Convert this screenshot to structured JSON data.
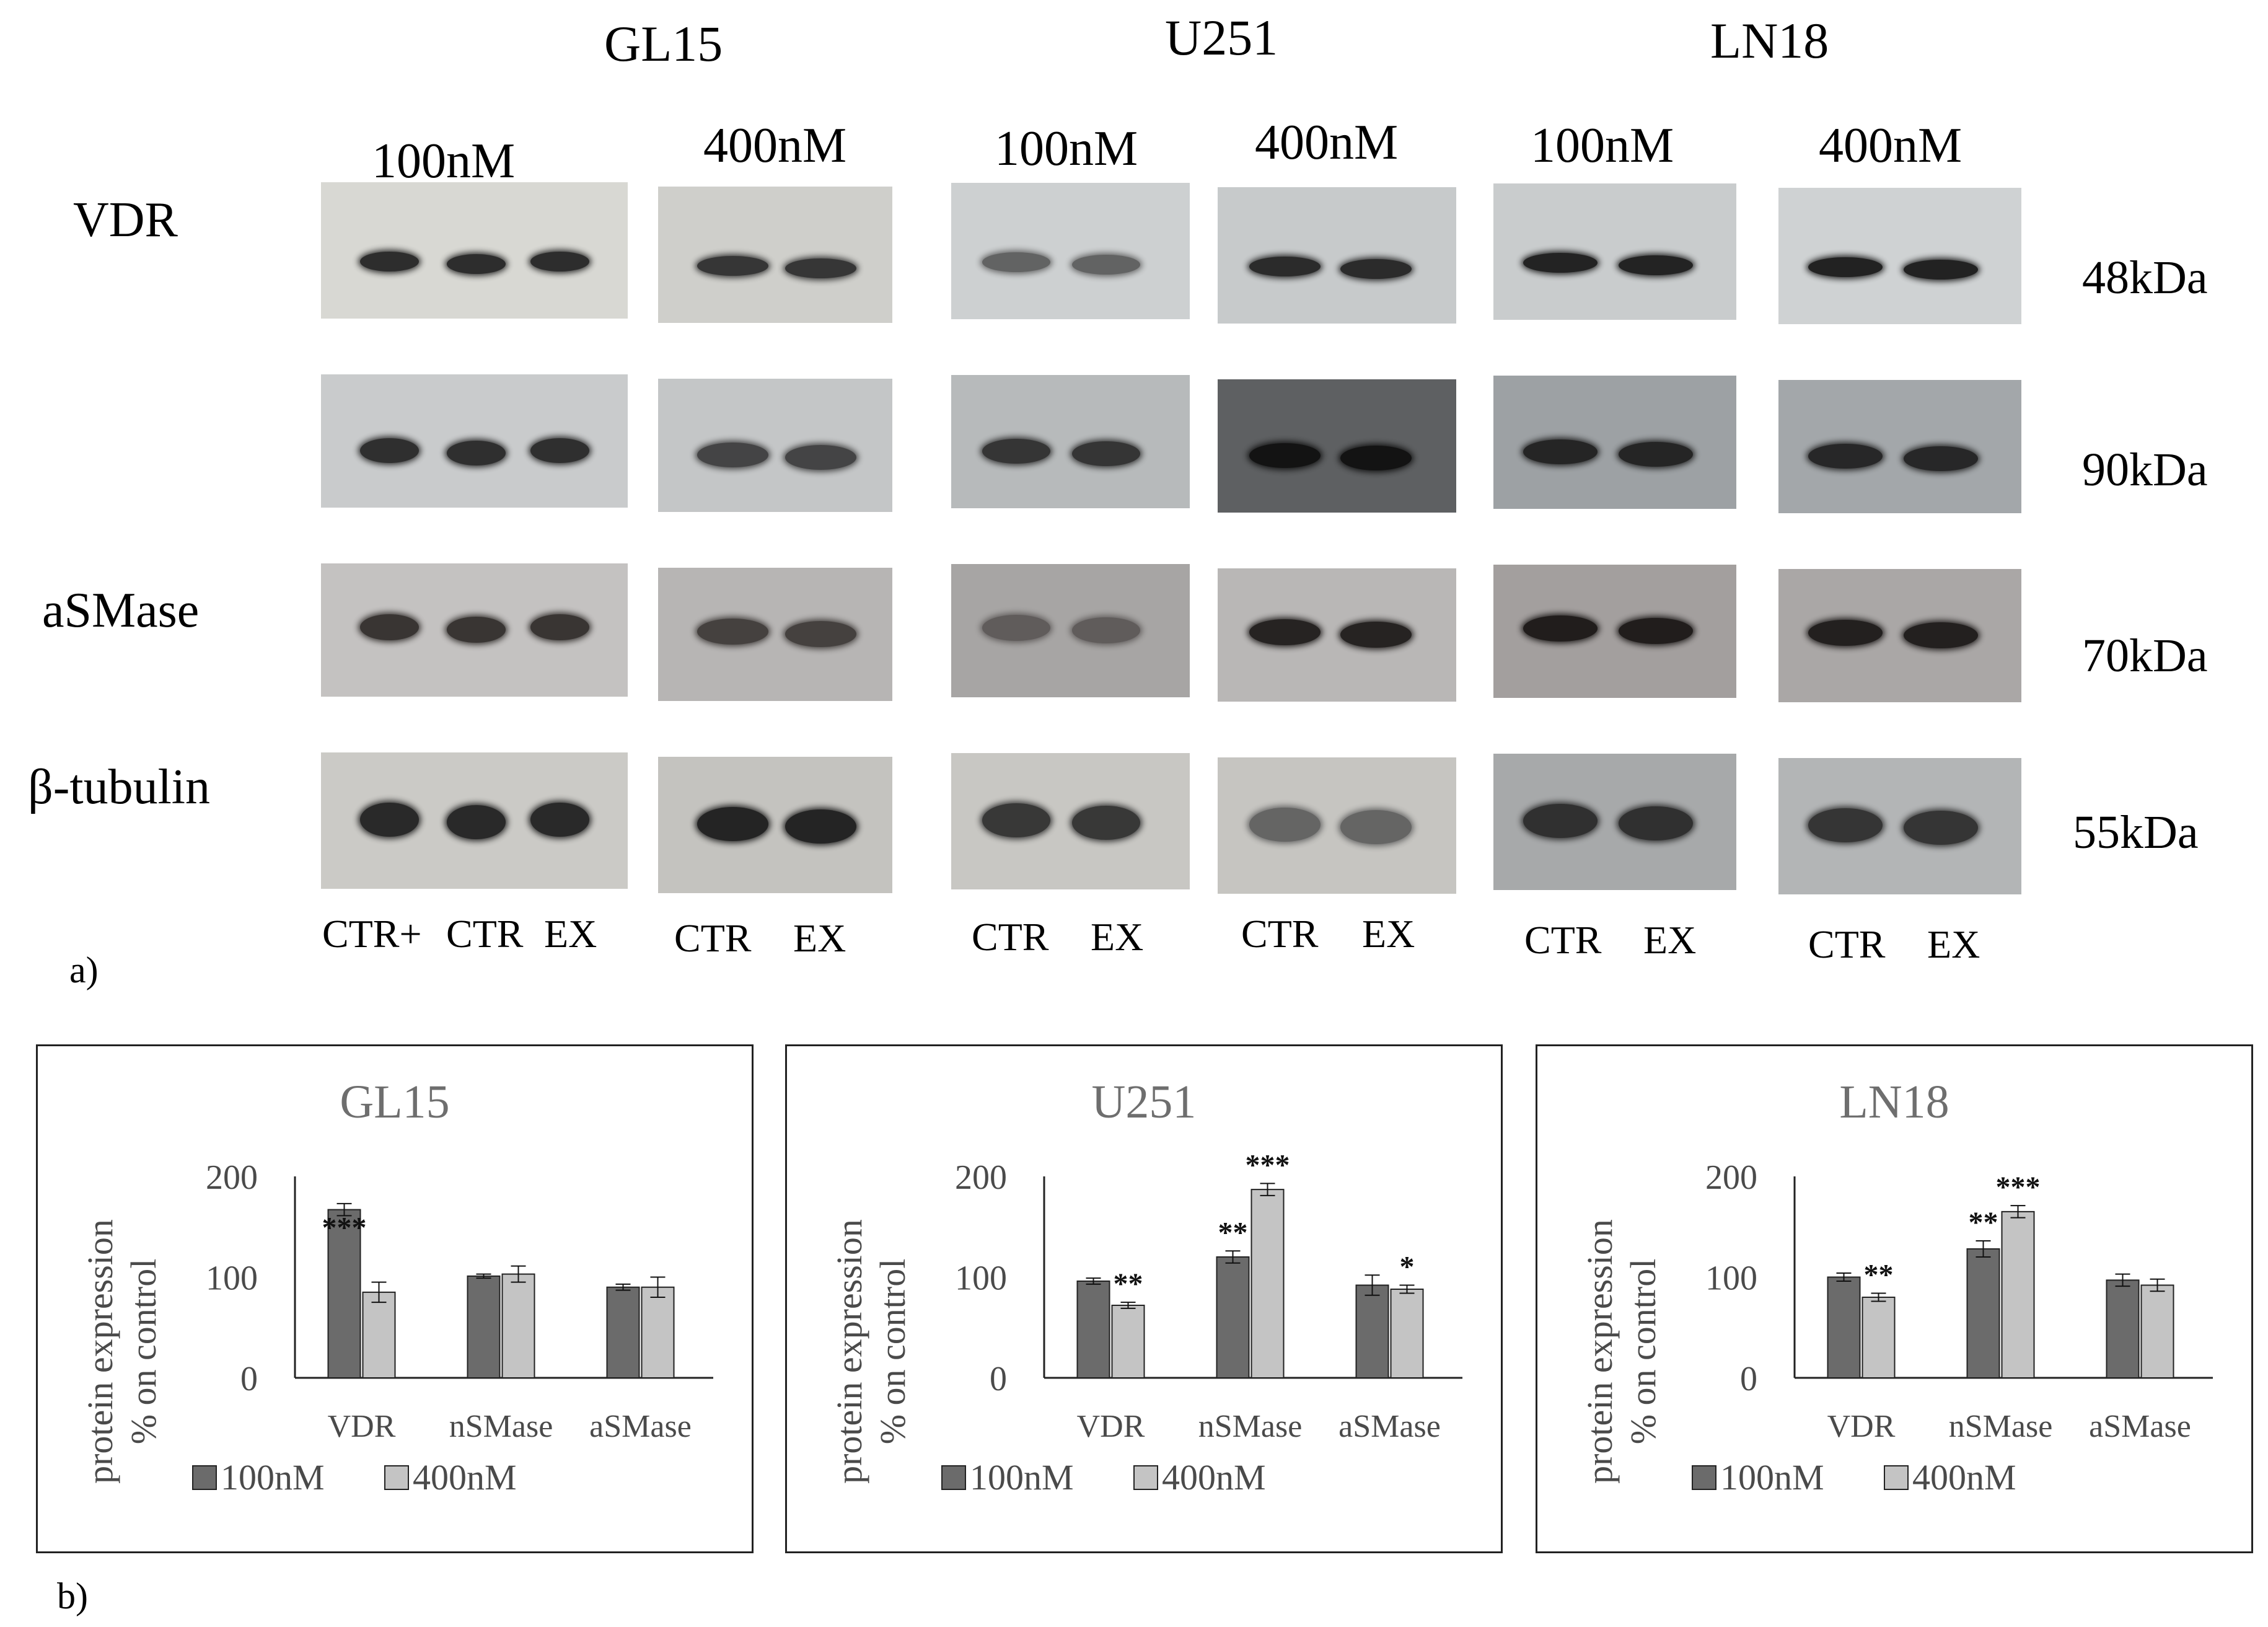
{
  "panel_a": {
    "label": "a)",
    "cell_lines": [
      {
        "name": "GL15",
        "concentrations": [
          "100nM",
          "400nM"
        ]
      },
      {
        "name": "U251",
        "concentrations": [
          "100nM",
          "400nM"
        ]
      },
      {
        "name": "LN18",
        "concentrations": [
          "100nM",
          "400nM"
        ]
      }
    ],
    "protein_labels": [
      "VDR",
      "aSMase",
      "β-tubulin"
    ],
    "kda_labels": [
      "48kDa",
      "90kDa",
      "70kDa",
      "55kDa"
    ],
    "lane_labels": [
      [
        "CTR+",
        "CTR",
        "EX"
      ],
      [
        "CTR",
        "EX"
      ],
      [
        "CTR",
        "EX"
      ],
      [
        "CTR",
        "EX"
      ],
      [
        "CTR",
        "EX"
      ],
      [
        "CTR",
        "EX"
      ]
    ]
  },
  "panel_b": {
    "label": "b)",
    "colors": {
      "100nM": "#6b6b6b",
      "400nM": "#c4c4c4",
      "title": "#6e6e6e",
      "axis_text": "#4a4a4a"
    }
  },
  "chart_data": [
    {
      "type": "bar",
      "title": "GL15",
      "ylabel": "protein expression % on control",
      "xlabel": "",
      "categories": [
        "VDR",
        "nSMase",
        "aSMase"
      ],
      "ylim": [
        0,
        200
      ],
      "yticks": [
        "0",
        "100",
        "200"
      ],
      "series": [
        {
          "name": "100nM",
          "values": [
            167,
            101,
            90
          ],
          "errors": [
            6,
            2,
            3
          ],
          "sig": [
            "***",
            "",
            ""
          ]
        },
        {
          "name": "400nM",
          "values": [
            85,
            103,
            90
          ],
          "errors": [
            10,
            8,
            10
          ],
          "sig": [
            "",
            "",
            ""
          ]
        }
      ],
      "legend": "bottom"
    },
    {
      "type": "bar",
      "title": "U251",
      "ylabel": "protein expression % on control",
      "xlabel": "",
      "categories": [
        "VDR",
        "nSMase",
        "aSMase"
      ],
      "ylim": [
        0,
        200
      ],
      "yticks": [
        "0",
        "100",
        "200"
      ],
      "series": [
        {
          "name": "100nM",
          "values": [
            96,
            120,
            92
          ],
          "errors": [
            3,
            6,
            10
          ],
          "sig": [
            "",
            "**",
            ""
          ]
        },
        {
          "name": "400nM",
          "values": [
            72,
            187,
            88
          ],
          "errors": [
            3,
            6,
            4
          ],
          "sig": [
            "**",
            "***",
            "*"
          ]
        }
      ],
      "legend": "bottom"
    },
    {
      "type": "bar",
      "title": "LN18",
      "ylabel": "protein expression % on control",
      "xlabel": "",
      "categories": [
        "VDR",
        "nSMase",
        "aSMase"
      ],
      "ylim": [
        0,
        200
      ],
      "yticks": [
        "0",
        "100",
        "200"
      ],
      "series": [
        {
          "name": "100nM",
          "values": [
            100,
            128,
            97
          ],
          "errors": [
            4,
            8,
            6
          ],
          "sig": [
            "",
            "**",
            ""
          ]
        },
        {
          "name": "400nM",
          "values": [
            80,
            165,
            92
          ],
          "errors": [
            4,
            6,
            6
          ],
          "sig": [
            "**",
            "***",
            ""
          ]
        }
      ],
      "legend": "bottom"
    }
  ]
}
